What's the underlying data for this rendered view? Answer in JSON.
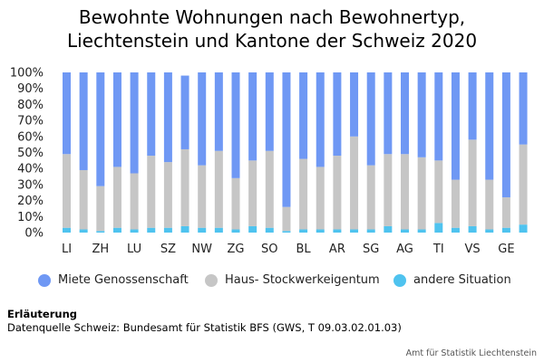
{
  "title_line1": "Bewohnte Wohnungen nach Bewohnertyp,",
  "title_line2": "Liechtenstein und Kantone der Schweiz 2020",
  "colors": {
    "blue": "#6f98f4",
    "grey": "#c6c6c6",
    "cyan": "#4fc3ef"
  },
  "legend": [
    {
      "label": "Miete Genossenschaft",
      "color": "#6f98f4"
    },
    {
      "label": "Haus- Stockwerkeigentum",
      "color": "#c6c6c6"
    },
    {
      "label": "andere Situation",
      "color": "#4fc3ef"
    }
  ],
  "note_heading": "Erläuterung",
  "note_text": "Datenquelle Schweiz: Bundesamt für Statistik BFS (GWS, T 09.03.02.01.03)",
  "credit": "Amt für Statistik Liechtenstein",
  "chart_data": {
    "type": "bar",
    "stacked": true,
    "title": "Bewohnte Wohnungen nach Bewohnertyp, Liechtenstein und Kantone der Schweiz 2020",
    "ylim": [
      0,
      100
    ],
    "yticks": [
      "0%",
      "10%",
      "20%",
      "30%",
      "40%",
      "50%",
      "60%",
      "70%",
      "80%",
      "90%",
      "100%"
    ],
    "grid": false,
    "legend_position": "bottom",
    "xtick_labels": [
      "LI",
      "ZH",
      "LU",
      "SZ",
      "NW",
      "ZG",
      "SO",
      "BL",
      "AR",
      "SG",
      "AG",
      "TI",
      "VS",
      "GE"
    ],
    "categories": [
      "LI",
      "",
      "ZH",
      "",
      "LU",
      "",
      "SZ",
      "",
      "NW",
      "",
      "ZG",
      "",
      "SO",
      "",
      "BL",
      "",
      "AR",
      "",
      "SG",
      "",
      "AG",
      "",
      "TI",
      "",
      "VS",
      "",
      "GE",
      ""
    ],
    "series": [
      {
        "name": "andere Situation",
        "values": [
          3,
          2,
          1,
          3,
          2,
          3,
          3,
          4,
          3,
          3,
          2,
          4,
          3,
          1,
          2,
          2,
          2,
          2,
          2,
          4,
          2,
          2,
          6,
          3,
          4,
          2,
          3,
          5
        ]
      },
      {
        "name": "Haus- Stockwerkeigentum",
        "values": [
          46,
          37,
          28,
          38,
          35,
          45,
          41,
          48,
          39,
          48,
          32,
          41,
          48,
          15,
          44,
          39,
          46,
          58,
          40,
          45,
          47,
          45,
          39,
          30,
          54,
          31,
          19,
          50
        ]
      },
      {
        "name": "Miete Genossenschaft",
        "values": [
          51,
          61,
          71,
          59,
          63,
          52,
          56,
          46,
          58,
          49,
          66,
          55,
          49,
          84,
          54,
          59,
          52,
          40,
          58,
          51,
          51,
          53,
          55,
          67,
          42,
          67,
          78,
          45
        ]
      }
    ],
    "visible_total_max": [
      100,
      100,
      100,
      100,
      100,
      100,
      100,
      98,
      100,
      100,
      100,
      100,
      100,
      100,
      100,
      100,
      100,
      100,
      100,
      100,
      100,
      100,
      100,
      100,
      100,
      100,
      100,
      100
    ]
  }
}
